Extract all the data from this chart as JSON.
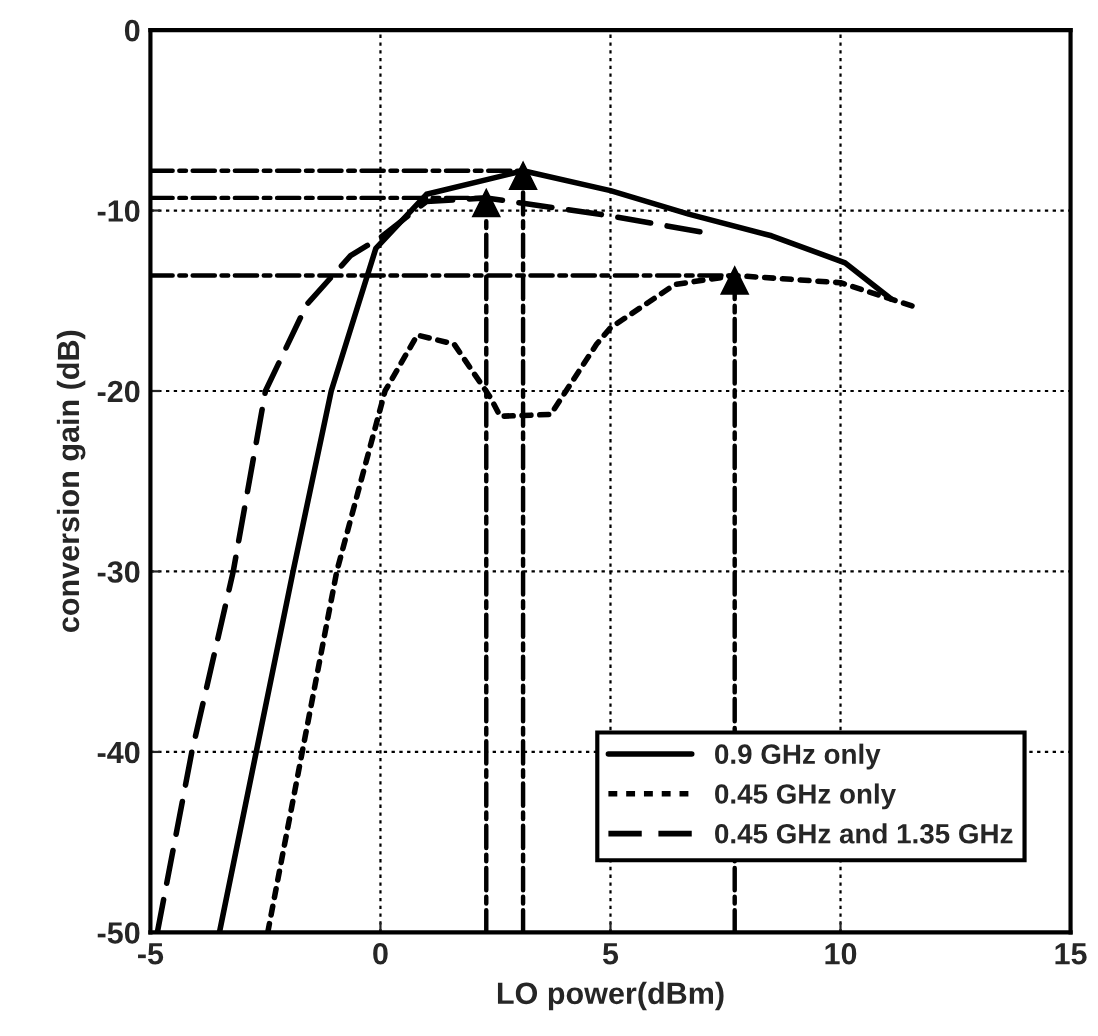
{
  "chart_data": {
    "type": "line",
    "xlabel": "LO power(dBm)",
    "ylabel": "conversion gain (dB)",
    "xlim": [
      -5,
      15
    ],
    "xticks": [
      -5,
      0,
      5,
      10,
      15
    ],
    "ylim": [
      -50,
      0
    ],
    "yticks": [
      -50,
      -40,
      -30,
      -20,
      -10,
      0
    ],
    "grid": true,
    "legend": "bottom right",
    "series": [
      {
        "name": "0.9 GHz only",
        "color": "#000000",
        "line_style": "solid",
        "x": [
          -3.5,
          -2.7,
          -1.9,
          -1.07,
          -0.1,
          1.0,
          3.1,
          5.0,
          6.7,
          8.5,
          10.1,
          11.1
        ],
        "values": [
          -50,
          -40,
          -30,
          -20,
          -12.1,
          -9.1,
          -7.8,
          -8.9,
          -10.2,
          -11.4,
          -12.9,
          -14.9
        ]
      },
      {
        "name": "0.45 GHz only",
        "color": "#000000",
        "line_style": "dotted",
        "x": [
          -2.45,
          -1.7,
          -0.95,
          0.1,
          0.8,
          1.6,
          2.4,
          2.6,
          3.7,
          4.7,
          5.0,
          6.4,
          7.7,
          10.0,
          11.7
        ],
        "values": [
          -50,
          -40,
          -30,
          -20,
          -16.9,
          -17.4,
          -20.4,
          -21.4,
          -21.3,
          -17.4,
          -16.5,
          -14.1,
          -13.6,
          -14.0,
          -15.4
        ]
      },
      {
        "name": "0.45 GHz and 1.35 GHz",
        "color": "#000000",
        "line_style": "dashed",
        "x": [
          -4.85,
          -4.1,
          -3.2,
          -2.5,
          -1.6,
          -0.65,
          0.0,
          1.0,
          2.3,
          3.1,
          5.0,
          7.0
        ],
        "values": [
          -50,
          -40,
          -30,
          -20,
          -15.2,
          -12.5,
          -11.5,
          -9.5,
          -9.3,
          -9.6,
          -10.3,
          -11.2
        ]
      },
      {
        "color": "#000000",
        "line_style": "dashdot",
        "x": [
          -5,
          3.1
        ],
        "values": [
          -7.8,
          -7.8
        ]
      },
      {
        "color": "#000000",
        "line_style": "dashdot",
        "x": [
          -5,
          2.3
        ],
        "values": [
          -9.3,
          -9.3
        ]
      },
      {
        "color": "#000000",
        "line_style": "dashdot",
        "x": [
          -5,
          7.7
        ],
        "values": [
          -13.6,
          -13.6
        ]
      },
      {
        "color": "#000000",
        "line_style": "dashdot",
        "marker": "triangle",
        "x": [
          2.3,
          2.3
        ],
        "values": [
          -50,
          -9.6
        ]
      },
      {
        "color": "#000000",
        "line_style": "dashdot",
        "marker": "triangle",
        "x": [
          3.1,
          3.1
        ],
        "values": [
          -50,
          -8.1
        ]
      },
      {
        "color": "#000000",
        "line_style": "dashdot",
        "marker": "triangle",
        "x": [
          7.7,
          7.7
        ],
        "values": [
          -50,
          -13.9
        ]
      }
    ]
  }
}
